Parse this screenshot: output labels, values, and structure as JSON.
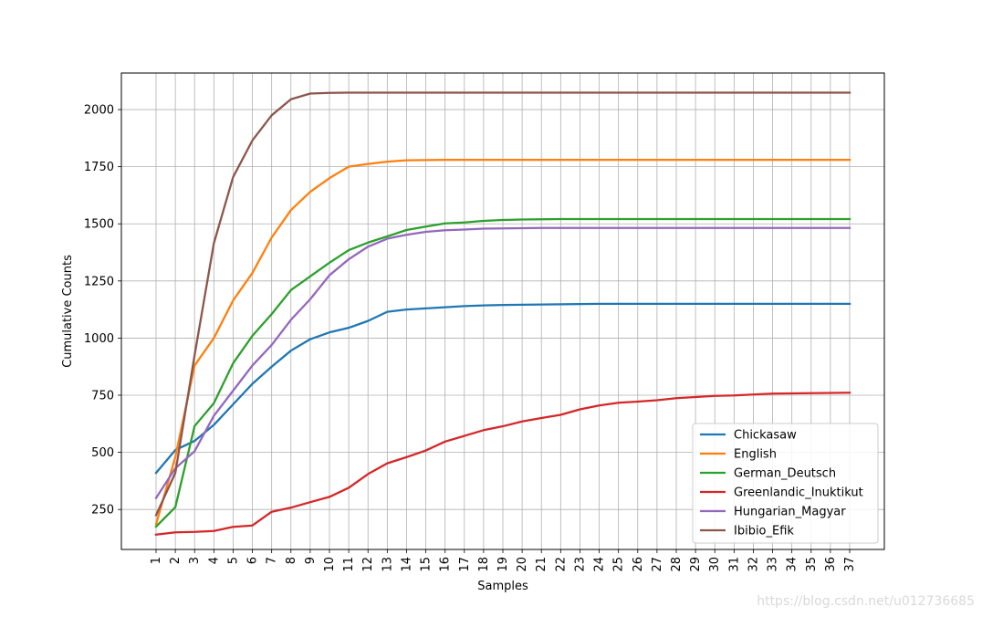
{
  "chart_data": {
    "type": "line",
    "title": "",
    "xlabel": "Samples",
    "ylabel": "Cumulative Counts",
    "x": [
      1,
      2,
      3,
      4,
      5,
      6,
      7,
      8,
      9,
      10,
      11,
      12,
      13,
      14,
      15,
      16,
      17,
      18,
      19,
      20,
      21,
      22,
      23,
      24,
      25,
      26,
      27,
      28,
      29,
      30,
      31,
      32,
      33,
      34,
      35,
      36,
      37
    ],
    "xlim": [
      -0.8,
      38.8
    ],
    "ylim": [
      75,
      2160
    ],
    "yticks": [
      250,
      500,
      750,
      1000,
      1250,
      1500,
      1750,
      2000
    ],
    "grid": true,
    "legend_position": "lower-right",
    "series": [
      {
        "name": "Chickasaw",
        "color": "#1f77b4",
        "values": [
          410,
          510,
          550,
          620,
          710,
          800,
          875,
          945,
          995,
          1025,
          1045,
          1075,
          1115,
          1125,
          1130,
          1135,
          1140,
          1143,
          1145,
          1146,
          1147,
          1148,
          1149,
          1150,
          1150,
          1150,
          1150,
          1150,
          1150,
          1150,
          1150,
          1150,
          1150,
          1150,
          1150,
          1150,
          1150
        ]
      },
      {
        "name": "English",
        "color": "#ff7f0e",
        "values": [
          185,
          480,
          880,
          1000,
          1165,
          1285,
          1440,
          1560,
          1640,
          1700,
          1750,
          1762,
          1772,
          1778,
          1779,
          1780,
          1780,
          1780,
          1780,
          1780,
          1780,
          1780,
          1780,
          1780,
          1780,
          1780,
          1780,
          1780,
          1780,
          1780,
          1780,
          1780,
          1780,
          1780,
          1780,
          1780,
          1780
        ]
      },
      {
        "name": "German_Deutsch",
        "color": "#2ca02c",
        "values": [
          175,
          260,
          615,
          715,
          890,
          1010,
          1105,
          1210,
          1270,
          1330,
          1385,
          1418,
          1445,
          1473,
          1488,
          1502,
          1506,
          1513,
          1517,
          1519,
          1520,
          1521,
          1521,
          1521,
          1521,
          1521,
          1521,
          1521,
          1521,
          1521,
          1521,
          1521,
          1521,
          1521,
          1521,
          1521,
          1521
        ]
      },
      {
        "name": "Greenlandic_Inuktikut",
        "color": "#d62728",
        "values": [
          140,
          150,
          152,
          156,
          174,
          180,
          240,
          258,
          282,
          305,
          345,
          405,
          452,
          479,
          508,
          547,
          572,
          597,
          614,
          635,
          650,
          664,
          688,
          705,
          717,
          722,
          728,
          737,
          742,
          747,
          749,
          753,
          757,
          758,
          759,
          760,
          761
        ]
      },
      {
        "name": "Hungarian_Magyar",
        "color": "#9467bd",
        "values": [
          300,
          430,
          505,
          660,
          770,
          880,
          970,
          1080,
          1170,
          1275,
          1345,
          1400,
          1435,
          1452,
          1465,
          1472,
          1475,
          1479,
          1480,
          1481,
          1482,
          1482,
          1482,
          1482,
          1482,
          1482,
          1482,
          1482,
          1482,
          1482,
          1482,
          1482,
          1482,
          1482,
          1482,
          1482,
          1482
        ]
      },
      {
        "name": "Ibibio_Efik",
        "color": "#8c564b",
        "values": [
          225,
          410,
          925,
          1415,
          1705,
          1865,
          1975,
          2045,
          2070,
          2073,
          2074,
          2074,
          2074,
          2074,
          2074,
          2074,
          2074,
          2074,
          2074,
          2074,
          2074,
          2074,
          2074,
          2074,
          2074,
          2074,
          2074,
          2074,
          2074,
          2074,
          2074,
          2074,
          2074,
          2074,
          2074,
          2074,
          2074
        ]
      }
    ]
  },
  "watermark": "https://blog.csdn.net/u012736685"
}
